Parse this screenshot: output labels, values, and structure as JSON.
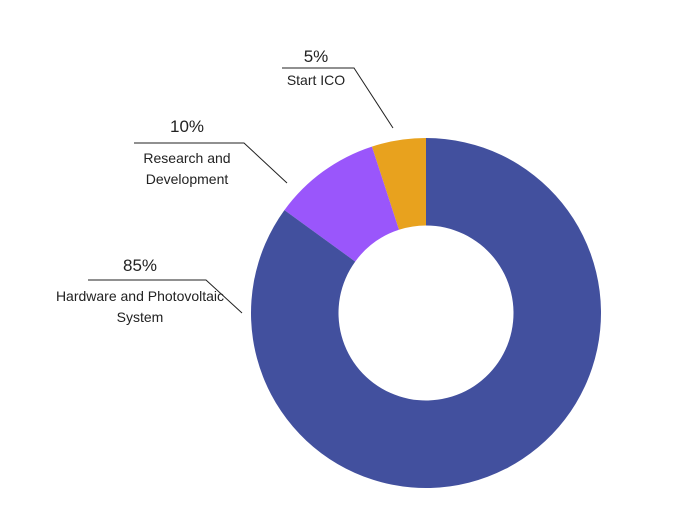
{
  "chart_data": {
    "type": "pie",
    "categories": [
      "Hardware and Photovoltaic System",
      "Research and Development",
      "Start ICO"
    ],
    "values": [
      85,
      10,
      5
    ],
    "value_labels": [
      "85%",
      "10%",
      "5%"
    ],
    "colors": [
      "#42509e",
      "#9a56fb",
      "#e8a21e"
    ],
    "inner_radius_ratio": 0.5
  }
}
